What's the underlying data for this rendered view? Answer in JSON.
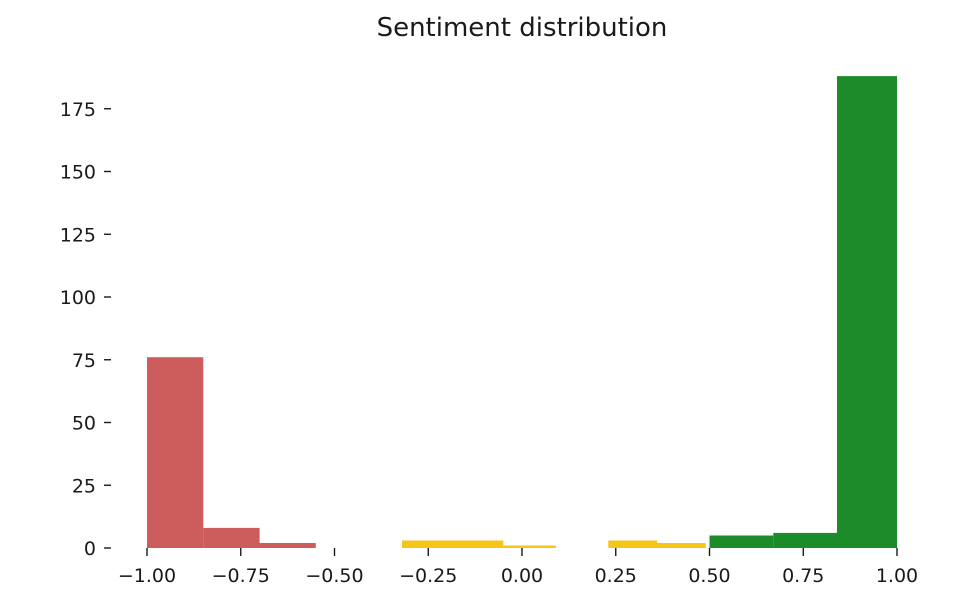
{
  "chart_data": {
    "type": "bar",
    "title": "Sentiment distribution",
    "xlabel": "",
    "ylabel": "",
    "xlim": [
      -1.0,
      1.0
    ],
    "ylim": [
      0,
      190
    ],
    "x_ticks": [
      "−1.00",
      "−0.75",
      "−0.50",
      "−0.25",
      "0.00",
      "0.25",
      "0.50",
      "0.75",
      "1.00"
    ],
    "x_tick_values": [
      -1.0,
      -0.75,
      -0.5,
      -0.25,
      0.0,
      0.25,
      0.5,
      0.75,
      1.0
    ],
    "y_ticks": [
      "0",
      "25",
      "50",
      "75",
      "100",
      "125",
      "150",
      "175"
    ],
    "y_tick_values": [
      0,
      25,
      50,
      75,
      100,
      125,
      150,
      175
    ],
    "grid": false,
    "series": [
      {
        "color": "#cd5c5c",
        "bins": [
          {
            "x0": -1.0,
            "x1": -0.85,
            "count": 76
          },
          {
            "x0": -0.85,
            "x1": -0.7,
            "count": 8
          },
          {
            "x0": -0.7,
            "x1": -0.55,
            "count": 2
          }
        ]
      },
      {
        "color": "#f5c518",
        "bins": [
          {
            "x0": -0.32,
            "x1": -0.05,
            "count": 3
          },
          {
            "x0": -0.05,
            "x1": 0.09,
            "count": 1
          },
          {
            "x0": 0.23,
            "x1": 0.36,
            "count": 3
          },
          {
            "x0": 0.36,
            "x1": 0.49,
            "count": 2
          }
        ]
      },
      {
        "color": "#1c8c2a",
        "bins": [
          {
            "x0": 0.5,
            "x1": 0.67,
            "count": 5
          },
          {
            "x0": 0.67,
            "x1": 0.84,
            "count": 6
          },
          {
            "x0": 0.84,
            "x1": 1.0,
            "count": 188
          }
        ]
      }
    ]
  }
}
